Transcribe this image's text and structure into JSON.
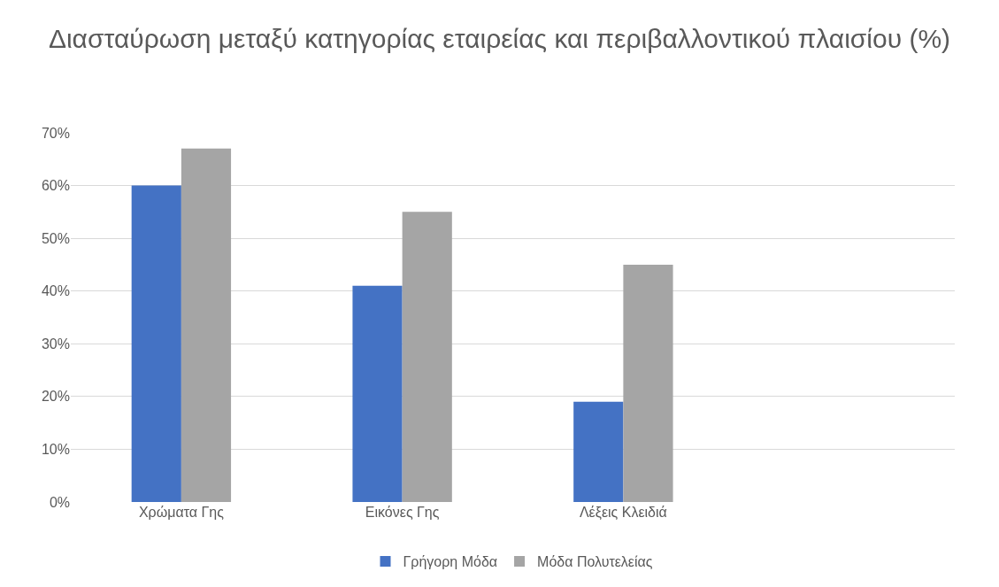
{
  "chart_data": {
    "type": "bar",
    "title": "Διασταύρωση μεταξύ κατηγορίας εταιρείας και περιβαλλοντικού πλαισίου (%)",
    "categories": [
      "Χρώματα Γης",
      "Εικόνες Γης",
      "Λέξεις Κλειδιά",
      null
    ],
    "series": [
      {
        "name": "Γρήγορη Μόδα",
        "color": "#4472c4",
        "values": [
          60,
          41,
          19,
          null
        ]
      },
      {
        "name": "Μόδα Πολυτελείας",
        "color": "#a5a5a5",
        "values": [
          67,
          55,
          45,
          null
        ]
      }
    ],
    "ylim": [
      0,
      70
    ],
    "yticks": [
      {
        "value": 0,
        "label": "0%"
      },
      {
        "value": 10,
        "label": "10%"
      },
      {
        "value": 20,
        "label": "20%"
      },
      {
        "value": 30,
        "label": "30%"
      },
      {
        "value": 40,
        "label": "40%"
      },
      {
        "value": 50,
        "label": "50%"
      },
      {
        "value": 60,
        "label": "60%"
      },
      {
        "value": 70,
        "label": "70%"
      }
    ],
    "grid": "y",
    "legend": "bottom"
  }
}
